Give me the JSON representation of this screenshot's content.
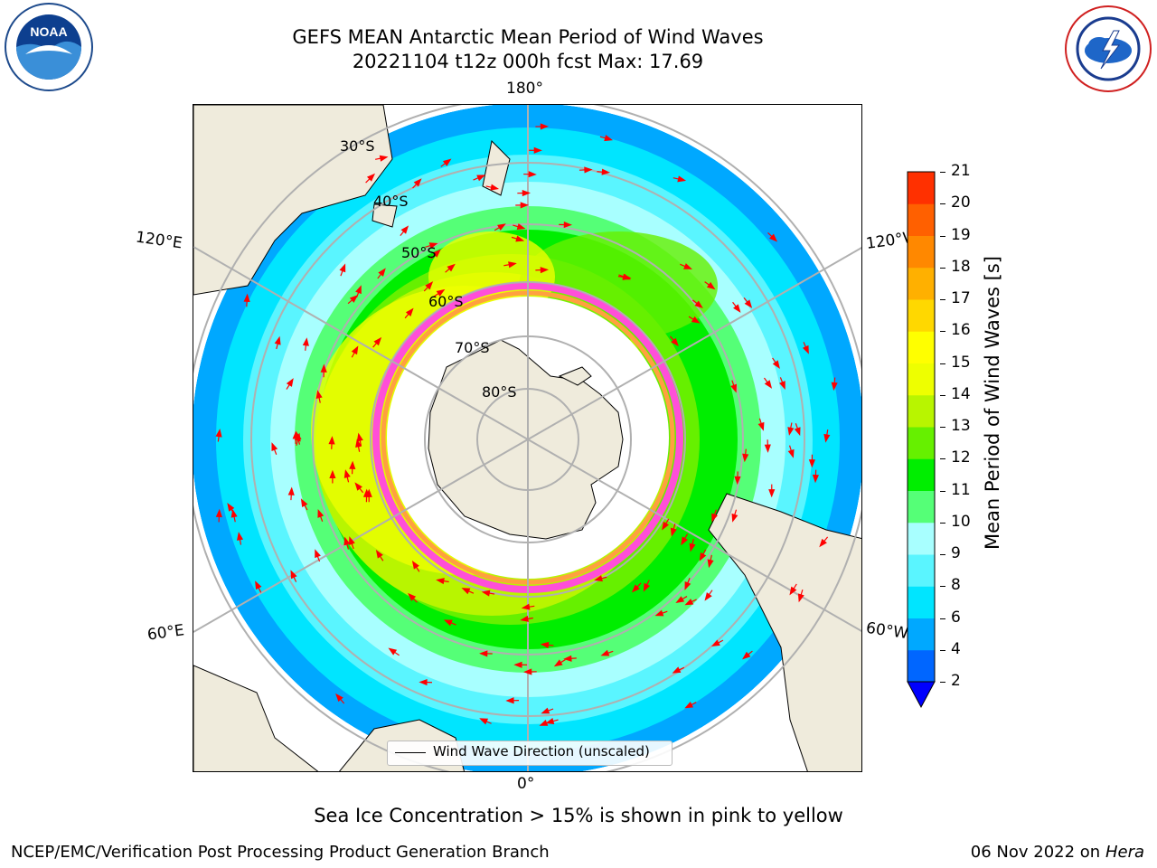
{
  "title": {
    "line1": "GEFS MEAN Antarctic Mean Period of Wind Waves",
    "line2": "20221104 t12z 000h fcst   Max: 17.69"
  },
  "logos": {
    "left": "NOAA",
    "right": "NATIONAL WEATHER SERVICE"
  },
  "map": {
    "projection": "south polar stereographic",
    "lon_labels": {
      "top": "180°",
      "bottom": "0°",
      "upper_left": "120°E",
      "upper_right": "120°W",
      "lower_left": "60°E",
      "lower_right": "60°W"
    },
    "lat_labels": [
      "30°S",
      "40°S",
      "50°S",
      "60°S",
      "70°S",
      "80°S"
    ],
    "legend": "Wind Wave Direction (unscaled)",
    "colors": {
      "land": "#efebdc",
      "arrow": "#ff0000",
      "ice_pink": "#ff4fd8",
      "ice_orange": "#ffa040"
    }
  },
  "colorbar": {
    "label": "Mean Period of Wind Waves [s]",
    "ticks": [
      "2",
      "4",
      "6",
      "8",
      "9",
      "10",
      "11",
      "12",
      "13",
      "14",
      "15",
      "16",
      "17",
      "18",
      "19",
      "20",
      "21"
    ],
    "colors": [
      "#0066ff",
      "#00a8ff",
      "#00e5ff",
      "#5af5ff",
      "#a8ffff",
      "#55ff77",
      "#00ee00",
      "#66f000",
      "#b8f500",
      "#eeff00",
      "#ffff00",
      "#ffd800",
      "#ffb000",
      "#ff8800",
      "#ff6000",
      "#ff3000",
      "#ff0000"
    ],
    "extend_color": "#0000ff"
  },
  "footer": {
    "note": "Sea Ice Concentration > 15% is shown in pink to yellow",
    "left": "NCEP/EMC/Verification Post Processing Product Generation Branch",
    "right_date": "06 Nov 2022 on",
    "right_machine": "Hera"
  }
}
